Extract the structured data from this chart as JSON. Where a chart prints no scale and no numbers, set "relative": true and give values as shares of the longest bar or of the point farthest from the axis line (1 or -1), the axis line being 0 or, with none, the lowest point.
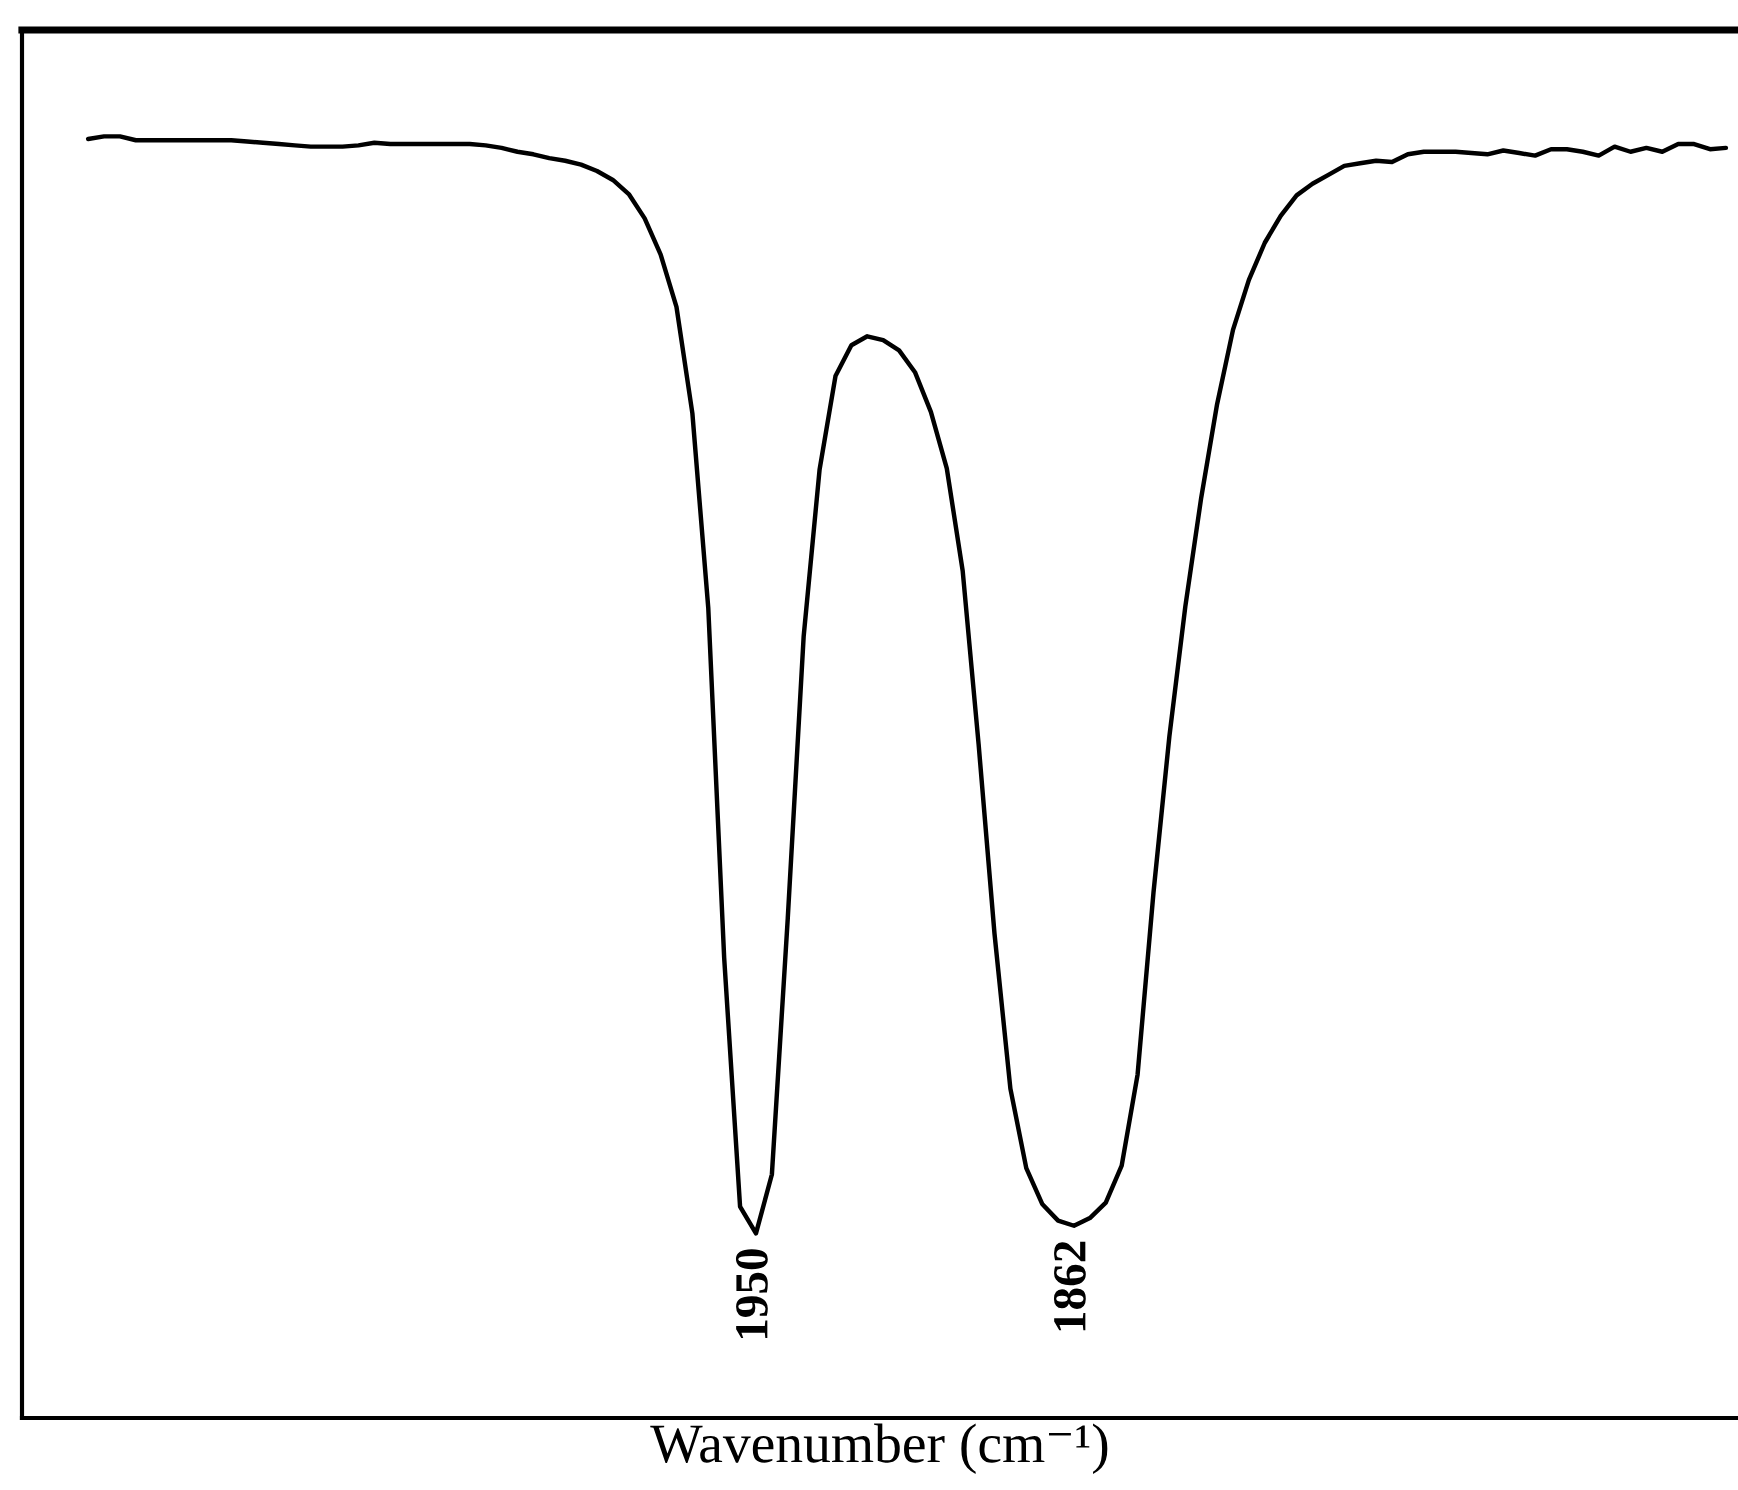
{
  "chart_data": {
    "type": "line",
    "xlabel": "Wavenumber (cm⁻¹)",
    "relative": true,
    "categories": [
      null,
      null,
      null,
      null,
      null,
      null,
      null,
      null,
      null,
      null,
      null,
      null,
      null,
      null,
      null,
      null,
      null,
      null,
      null,
      null,
      null,
      null,
      null,
      null,
      null,
      null,
      null,
      null,
      null,
      null,
      null,
      null,
      null,
      null,
      null,
      null,
      null,
      null,
      null,
      null,
      null,
      null,
      null,
      null,
      null,
      null,
      null,
      null,
      null,
      null,
      null,
      null,
      null,
      null,
      null,
      null,
      null,
      null,
      null,
      null,
      null,
      null,
      null,
      null,
      null,
      null,
      null,
      null,
      null,
      null,
      null,
      null,
      null,
      null,
      null,
      null,
      null,
      null,
      null,
      null,
      null,
      null,
      null,
      null,
      null,
      null,
      null,
      null,
      null,
      null,
      null,
      null,
      null,
      null,
      null,
      null,
      null,
      null,
      null,
      null,
      null,
      null,
      null,
      null
    ],
    "series": [
      {
        "color": "#000000",
        "values": [
          0.998,
          1.0,
          1.0,
          0.997,
          0.997,
          0.997,
          0.997,
          0.997,
          0.997,
          0.997,
          0.996,
          0.995,
          0.994,
          0.993,
          0.992,
          0.992,
          0.992,
          0.993,
          0.995,
          0.994,
          0.994,
          0.994,
          0.994,
          0.994,
          0.994,
          0.993,
          0.991,
          0.988,
          0.986,
          0.983,
          0.981,
          0.978,
          0.973,
          0.966,
          0.955,
          0.936,
          0.908,
          0.867,
          0.784,
          0.632,
          0.359,
          0.165,
          0.144,
          0.19,
          0.39,
          0.61,
          0.74,
          0.813,
          0.837,
          0.844,
          0.841,
          0.833,
          0.816,
          0.785,
          0.741,
          0.661,
          0.526,
          0.378,
          0.257,
          0.195,
          0.167,
          0.154,
          0.15,
          0.156,
          0.168,
          0.197,
          0.268,
          0.41,
          0.532,
          0.633,
          0.718,
          0.791,
          0.849,
          0.888,
          0.917,
          0.938,
          0.954,
          0.963,
          0.97,
          0.977,
          0.979,
          0.981,
          0.98,
          0.986,
          0.988,
          0.988,
          0.988,
          0.987,
          0.986,
          0.989,
          0.987,
          0.985,
          0.99,
          0.99,
          0.988,
          0.985,
          0.992,
          0.988,
          0.991,
          0.988,
          0.994,
          0.994,
          0.99,
          0.991
        ]
      }
    ],
    "annotations": [
      {
        "text": "1950",
        "y": 0.144
      },
      {
        "text": "1862",
        "y": 0.15
      }
    ]
  }
}
